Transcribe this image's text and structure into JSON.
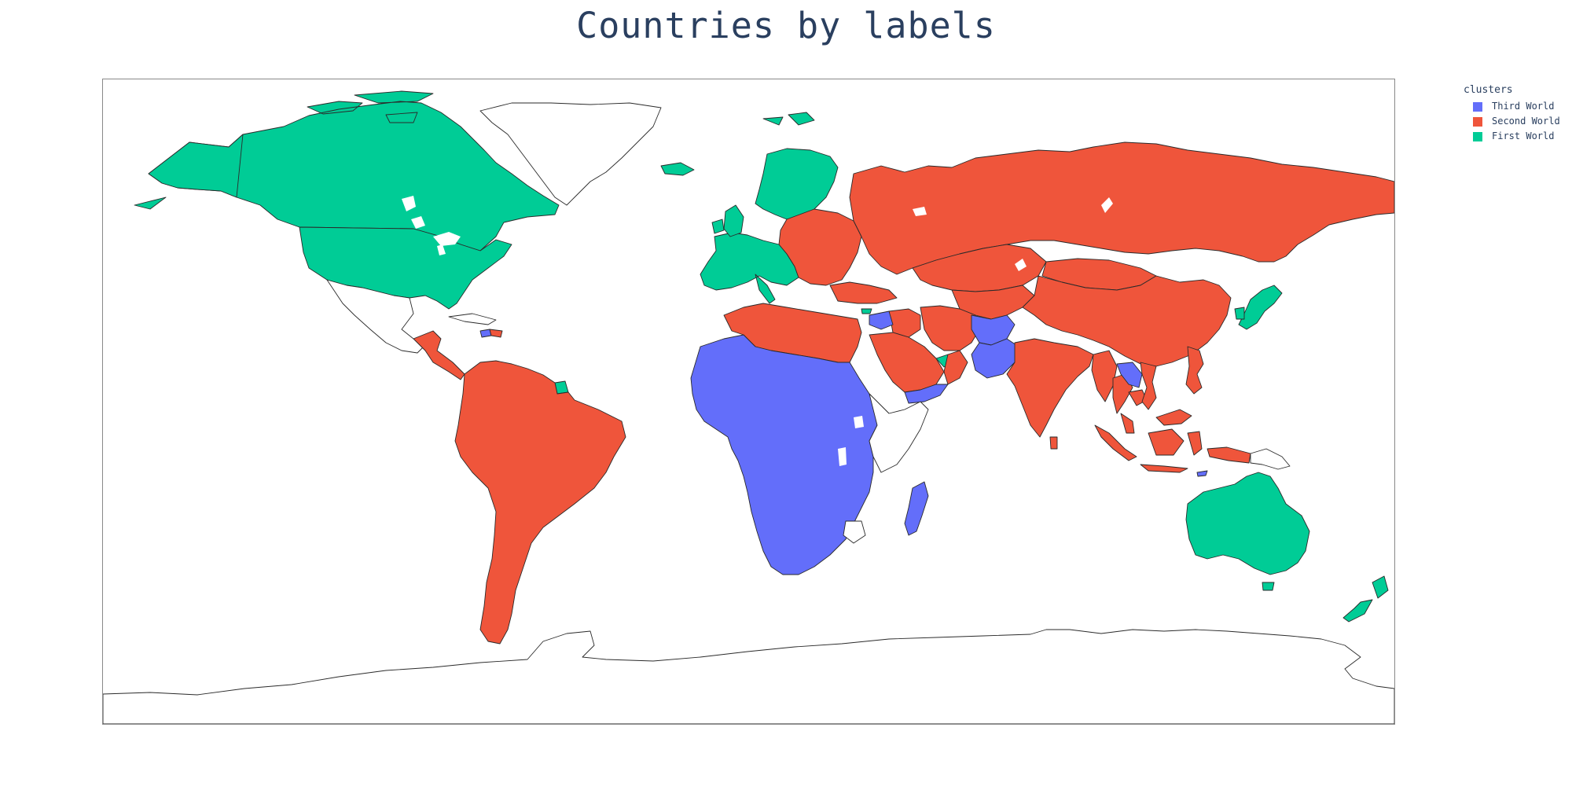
{
  "chart_data": {
    "type": "choropleth",
    "title": "Countries by labels",
    "projection": "equirectangular",
    "country_border_color": "#2a2a2a",
    "nodata_color": "#ffffff",
    "legend": {
      "title": "clusters",
      "placement": "top-right",
      "entries": [
        {
          "label": "Third World",
          "color": "#636efa"
        },
        {
          "label": "Second World",
          "color": "#ef553b"
        },
        {
          "label": "First World",
          "color": "#00cc96"
        }
      ]
    },
    "regions": [
      {
        "name": "Canada",
        "cluster": "First World"
      },
      {
        "name": "United States",
        "cluster": "First World"
      },
      {
        "name": "Alaska (United States)",
        "cluster": "First World"
      },
      {
        "name": "Mexico",
        "cluster": "No data"
      },
      {
        "name": "Central America",
        "cluster": "Second World"
      },
      {
        "name": "Haiti",
        "cluster": "Third World"
      },
      {
        "name": "Dominican Republic",
        "cluster": "Second World"
      },
      {
        "name": "Cuba",
        "cluster": "No data"
      },
      {
        "name": "French Guiana",
        "cluster": "First World"
      },
      {
        "name": "South America",
        "cluster": "Second World"
      },
      {
        "name": "Greenland",
        "cluster": "No data"
      },
      {
        "name": "Iceland",
        "cluster": "First World"
      },
      {
        "name": "Svalbard",
        "cluster": "First World"
      },
      {
        "name": "Western Europe",
        "cluster": "First World"
      },
      {
        "name": "Scandinavia",
        "cluster": "First World"
      },
      {
        "name": "United Kingdom",
        "cluster": "First World"
      },
      {
        "name": "Ireland",
        "cluster": "First World"
      },
      {
        "name": "Eastern Europe",
        "cluster": "Second World"
      },
      {
        "name": "Russia",
        "cluster": "Second World"
      },
      {
        "name": "Turkey",
        "cluster": "Second World"
      },
      {
        "name": "Cyprus",
        "cluster": "First World"
      },
      {
        "name": "Kazakhstan",
        "cluster": "Second World"
      },
      {
        "name": "Central Asia",
        "cluster": "Second World"
      },
      {
        "name": "Mongolia",
        "cluster": "Second World"
      },
      {
        "name": "China",
        "cluster": "Second World"
      },
      {
        "name": "Japan",
        "cluster": "First World"
      },
      {
        "name": "South Korea",
        "cluster": "First World"
      },
      {
        "name": "Iran",
        "cluster": "Second World"
      },
      {
        "name": "Iraq",
        "cluster": "Second World"
      },
      {
        "name": "Syria",
        "cluster": "Third World"
      },
      {
        "name": "Saudi Arabia",
        "cluster": "Second World"
      },
      {
        "name": "United Arab Emirates",
        "cluster": "First World"
      },
      {
        "name": "Yemen",
        "cluster": "Third World"
      },
      {
        "name": "Oman",
        "cluster": "Second World"
      },
      {
        "name": "Afghanistan",
        "cluster": "Third World"
      },
      {
        "name": "Pakistan",
        "cluster": "Third World"
      },
      {
        "name": "India",
        "cluster": "Second World"
      },
      {
        "name": "Sri Lanka",
        "cluster": "Second World"
      },
      {
        "name": "Myanmar",
        "cluster": "Second World"
      },
      {
        "name": "Thailand",
        "cluster": "Second World"
      },
      {
        "name": "Laos",
        "cluster": "Third World"
      },
      {
        "name": "Cambodia",
        "cluster": "Second World"
      },
      {
        "name": "Vietnam",
        "cluster": "Second World"
      },
      {
        "name": "Malaysia",
        "cluster": "Second World"
      },
      {
        "name": "Philippines",
        "cluster": "Second World"
      },
      {
        "name": "Indonesia",
        "cluster": "Second World"
      },
      {
        "name": "Papua New Guinea",
        "cluster": "No data"
      },
      {
        "name": "Timor-Leste",
        "cluster": "Third World"
      },
      {
        "name": "Australia",
        "cluster": "First World"
      },
      {
        "name": "New Zealand",
        "cluster": "First World"
      },
      {
        "name": "North Africa",
        "cluster": "Second World"
      },
      {
        "name": "Sub-Saharan Africa",
        "cluster": "Third World"
      },
      {
        "name": "Somalia",
        "cluster": "No data"
      },
      {
        "name": "Zimbabwe",
        "cluster": "No data"
      },
      {
        "name": "Madagascar",
        "cluster": "Third World"
      },
      {
        "name": "Antarctica",
        "cluster": "No data"
      }
    ]
  }
}
